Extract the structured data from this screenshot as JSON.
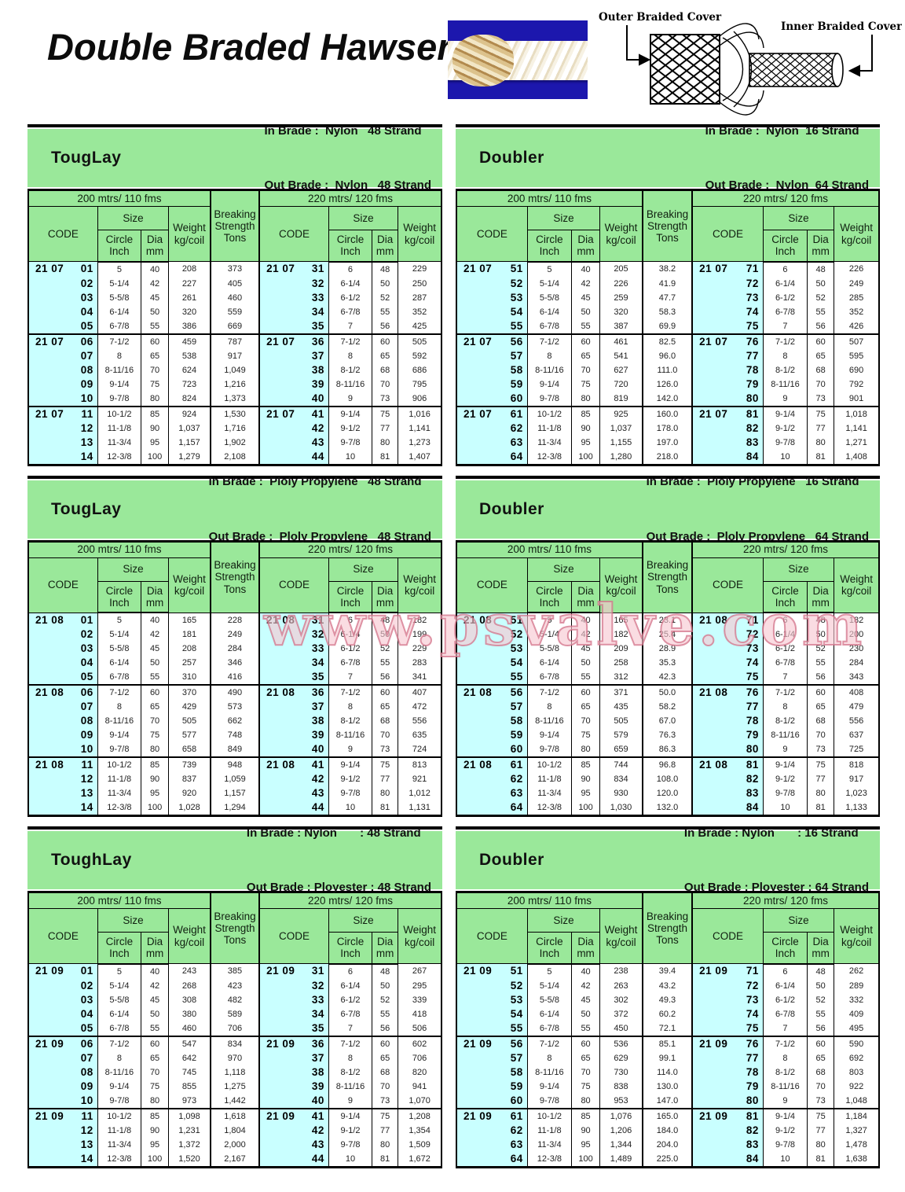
{
  "page": {
    "title": "Double Braded Hawser",
    "watermark": "www.psvalve.com"
  },
  "diagram": {
    "outer_label": "Outer Braided Cover",
    "inner_label": "Inner Braided Cover"
  },
  "colors": {
    "header_green": "#9ae89a",
    "code_cyan": "#c9ffff",
    "watermark_pink": "#d37389",
    "photo_blue": "#1c17ad"
  },
  "columns": {
    "span200": "200 mtrs/ 110 fms",
    "span220": "220 mtrs/ 120 fms",
    "code": "CODE",
    "size": "Size",
    "circle": "Circle Inch",
    "dia": "Dia mm",
    "weight": "Weight kg/coil",
    "breaking": "Breaking Strength Tons"
  },
  "tables": [
    {
      "title": "TougLay",
      "in_brade": "In Brade :  Nylon   48 Strand",
      "out_brade": "Out Brade :  Nylon   48 Strand",
      "rows": [
        [
          "21 07",
          "01",
          "5",
          "40",
          "208",
          "373",
          "21 07",
          "31",
          "6",
          "48",
          "229"
        ],
        [
          "",
          "02",
          "5-1/4",
          "42",
          "227",
          "405",
          "",
          "32",
          "6-1/4",
          "50",
          "250"
        ],
        [
          "",
          "03",
          "5-5/8",
          "45",
          "261",
          "460",
          "",
          "33",
          "6-1/2",
          "52",
          "287"
        ],
        [
          "",
          "04",
          "6-1/4",
          "50",
          "320",
          "559",
          "",
          "34",
          "6-7/8",
          "55",
          "352"
        ],
        [
          "",
          "05",
          "6-7/8",
          "55",
          "386",
          "669",
          "",
          "35",
          "7",
          "56",
          "425"
        ],
        [
          "21 07",
          "06",
          "7-1/2",
          "60",
          "459",
          "787",
          "21 07",
          "36",
          "7-1/2",
          "60",
          "505"
        ],
        [
          "",
          "07",
          "8",
          "65",
          "538",
          "917",
          "",
          "37",
          "8",
          "65",
          "592"
        ],
        [
          "",
          "08",
          "8-11/16",
          "70",
          "624",
          "1,049",
          "",
          "38",
          "8-1/2",
          "68",
          "686"
        ],
        [
          "",
          "09",
          "9-1/4",
          "75",
          "723",
          "1,216",
          "",
          "39",
          "8-11/16",
          "70",
          "795"
        ],
        [
          "",
          "10",
          "9-7/8",
          "80",
          "824",
          "1,373",
          "",
          "40",
          "9",
          "73",
          "906"
        ],
        [
          "21 07",
          "11",
          "10-1/2",
          "85",
          "924",
          "1,530",
          "21 07",
          "41",
          "9-1/4",
          "75",
          "1,016"
        ],
        [
          "",
          "12",
          "11-1/8",
          "90",
          "1,037",
          "1,716",
          "",
          "42",
          "9-1/2",
          "77",
          "1,141"
        ],
        [
          "",
          "13",
          "11-3/4",
          "95",
          "1,157",
          "1,902",
          "",
          "43",
          "9-7/8",
          "80",
          "1,273"
        ],
        [
          "",
          "14",
          "12-3/8",
          "100",
          "1,279",
          "2,108",
          "",
          "44",
          "10",
          "81",
          "1,407"
        ]
      ]
    },
    {
      "title": "Doubler",
      "in_brade": "In Brade :  Nylon  16 Strand",
      "out_brade": "Out Brade :  Nylon  64 Strand",
      "rows": [
        [
          "21 07",
          "51",
          "5",
          "40",
          "205",
          "38.2",
          "21 07",
          "71",
          "6",
          "48",
          "226"
        ],
        [
          "",
          "52",
          "5-1/4",
          "42",
          "226",
          "41.9",
          "",
          "72",
          "6-1/4",
          "50",
          "249"
        ],
        [
          "",
          "53",
          "5-5/8",
          "45",
          "259",
          "47.7",
          "",
          "73",
          "6-1/2",
          "52",
          "285"
        ],
        [
          "",
          "54",
          "6-1/4",
          "50",
          "320",
          "58.3",
          "",
          "74",
          "6-7/8",
          "55",
          "352"
        ],
        [
          "",
          "55",
          "6-7/8",
          "55",
          "387",
          "69.9",
          "",
          "75",
          "7",
          "56",
          "426"
        ],
        [
          "21 07",
          "56",
          "7-1/2",
          "60",
          "461",
          "82.5",
          "21 07",
          "76",
          "7-1/2",
          "60",
          "507"
        ],
        [
          "",
          "57",
          "8",
          "65",
          "541",
          "96.0",
          "",
          "77",
          "8",
          "65",
          "595"
        ],
        [
          "",
          "58",
          "8-11/16",
          "70",
          "627",
          "111.0",
          "",
          "78",
          "8-1/2",
          "68",
          "690"
        ],
        [
          "",
          "59",
          "9-1/4",
          "75",
          "720",
          "126.0",
          "",
          "79",
          "8-11/16",
          "70",
          "792"
        ],
        [
          "",
          "60",
          "9-7/8",
          "80",
          "819",
          "142.0",
          "",
          "80",
          "9",
          "73",
          "901"
        ],
        [
          "21 07",
          "61",
          "10-1/2",
          "85",
          "925",
          "160.0",
          "21 07",
          "81",
          "9-1/4",
          "75",
          "1,018"
        ],
        [
          "",
          "62",
          "11-1/8",
          "90",
          "1,037",
          "178.0",
          "",
          "82",
          "9-1/2",
          "77",
          "1,141"
        ],
        [
          "",
          "63",
          "11-3/4",
          "95",
          "1,155",
          "197.0",
          "",
          "83",
          "9-7/8",
          "80",
          "1,271"
        ],
        [
          "",
          "64",
          "12-3/8",
          "100",
          "1,280",
          "218.0",
          "",
          "84",
          "10",
          "81",
          "1,408"
        ]
      ]
    },
    {
      "title": "TougLay",
      "in_brade": "In Brade :  Ploly Propylene   48 Strand",
      "out_brade": "Out Brade :  Ploly Propylene   48 Strand",
      "rows": [
        [
          "21 08",
          "01",
          "5",
          "40",
          "165",
          "228",
          "21 08",
          "31",
          "6",
          "48",
          "182"
        ],
        [
          "",
          "02",
          "5-1/4",
          "42",
          "181",
          "249",
          "",
          "32",
          "6-1/4",
          "50",
          "199"
        ],
        [
          "",
          "03",
          "5-5/8",
          "45",
          "208",
          "284",
          "",
          "33",
          "6-1/2",
          "52",
          "229"
        ],
        [
          "",
          "04",
          "6-1/4",
          "50",
          "257",
          "346",
          "",
          "34",
          "6-7/8",
          "55",
          "283"
        ],
        [
          "",
          "05",
          "6-7/8",
          "55",
          "310",
          "416",
          "",
          "35",
          "7",
          "56",
          "341"
        ],
        [
          "21 08",
          "06",
          "7-1/2",
          "60",
          "370",
          "490",
          "21 08",
          "36",
          "7-1/2",
          "60",
          "407"
        ],
        [
          "",
          "07",
          "8",
          "65",
          "429",
          "573",
          "",
          "37",
          "8",
          "65",
          "472"
        ],
        [
          "",
          "08",
          "8-11/16",
          "70",
          "505",
          "662",
          "",
          "38",
          "8-1/2",
          "68",
          "556"
        ],
        [
          "",
          "09",
          "9-1/4",
          "75",
          "577",
          "748",
          "",
          "39",
          "8-11/16",
          "70",
          "635"
        ],
        [
          "",
          "10",
          "9-7/8",
          "80",
          "658",
          "849",
          "",
          "40",
          "9",
          "73",
          "724"
        ],
        [
          "21 08",
          "11",
          "10-1/2",
          "85",
          "739",
          "948",
          "21 08",
          "41",
          "9-1/4",
          "75",
          "813"
        ],
        [
          "",
          "12",
          "11-1/8",
          "90",
          "837",
          "1,059",
          "",
          "42",
          "9-1/2",
          "77",
          "921"
        ],
        [
          "",
          "13",
          "11-3/4",
          "95",
          "920",
          "1,157",
          "",
          "43",
          "9-7/8",
          "80",
          "1,012"
        ],
        [
          "",
          "14",
          "12-3/8",
          "100",
          "1,028",
          "1,294",
          "",
          "44",
          "10",
          "81",
          "1,131"
        ]
      ]
    },
    {
      "title": "Doubler",
      "in_brade": "In Brade :  Ploly Propylene   16 Strand",
      "out_brade": "Out Brade :  Ploly Propylene   64 Strand",
      "rows": [
        [
          "21 08",
          "51",
          "5",
          "40",
          "165",
          "23.1",
          "21 08",
          "71",
          "6",
          "48",
          "182"
        ],
        [
          "",
          "52",
          "5-1/4",
          "42",
          "182",
          "25.4",
          "",
          "72",
          "6-1/4",
          "50",
          "200"
        ],
        [
          "",
          "53",
          "5-5/8",
          "45",
          "209",
          "28.9",
          "",
          "73",
          "6-1/2",
          "52",
          "230"
        ],
        [
          "",
          "54",
          "6-1/4",
          "50",
          "258",
          "35.3",
          "",
          "74",
          "6-7/8",
          "55",
          "284"
        ],
        [
          "",
          "55",
          "6-7/8",
          "55",
          "312",
          "42.3",
          "",
          "75",
          "7",
          "56",
          "343"
        ],
        [
          "21 08",
          "56",
          "7-1/2",
          "60",
          "371",
          "50.0",
          "21 08",
          "76",
          "7-1/2",
          "60",
          "408"
        ],
        [
          "",
          "57",
          "8",
          "65",
          "435",
          "58.2",
          "",
          "77",
          "8",
          "65",
          "479"
        ],
        [
          "",
          "58",
          "8-11/16",
          "70",
          "505",
          "67.0",
          "",
          "78",
          "8-1/2",
          "68",
          "556"
        ],
        [
          "",
          "59",
          "9-1/4",
          "75",
          "579",
          "76.3",
          "",
          "79",
          "8-11/16",
          "70",
          "637"
        ],
        [
          "",
          "60",
          "9-7/8",
          "80",
          "659",
          "86.3",
          "",
          "80",
          "9",
          "73",
          "725"
        ],
        [
          "21 08",
          "61",
          "10-1/2",
          "85",
          "744",
          "96.8",
          "21 08",
          "81",
          "9-1/4",
          "75",
          "818"
        ],
        [
          "",
          "62",
          "11-1/8",
          "90",
          "834",
          "108.0",
          "",
          "82",
          "9-1/2",
          "77",
          "917"
        ],
        [
          "",
          "63",
          "11-3/4",
          "95",
          "930",
          "120.0",
          "",
          "83",
          "9-7/8",
          "80",
          "1,023"
        ],
        [
          "",
          "64",
          "12-3/8",
          "100",
          "1,030",
          "132.0",
          "",
          "84",
          "10",
          "81",
          "1,133"
        ]
      ]
    },
    {
      "title": "ToughLay",
      "in_brade": "In Brade : Nylon       : 48 Strand",
      "out_brade": "Out Brade : Ployester : 48 Strand",
      "rows": [
        [
          "21 09",
          "01",
          "5",
          "40",
          "243",
          "385",
          "21 09",
          "31",
          "6",
          "48",
          "267"
        ],
        [
          "",
          "02",
          "5-1/4",
          "42",
          "268",
          "423",
          "",
          "32",
          "6-1/4",
          "50",
          "295"
        ],
        [
          "",
          "03",
          "5-5/8",
          "45",
          "308",
          "482",
          "",
          "33",
          "6-1/2",
          "52",
          "339"
        ],
        [
          "",
          "04",
          "6-1/4",
          "50",
          "380",
          "589",
          "",
          "34",
          "6-7/8",
          "55",
          "418"
        ],
        [
          "",
          "05",
          "6-7/8",
          "55",
          "460",
          "706",
          "",
          "35",
          "7",
          "56",
          "506"
        ],
        [
          "21 09",
          "06",
          "7-1/2",
          "60",
          "547",
          "834",
          "21 09",
          "36",
          "7-1/2",
          "60",
          "602"
        ],
        [
          "",
          "07",
          "8",
          "65",
          "642",
          "970",
          "",
          "37",
          "8",
          "65",
          "706"
        ],
        [
          "",
          "08",
          "8-11/16",
          "70",
          "745",
          "1,118",
          "",
          "38",
          "8-1/2",
          "68",
          "820"
        ],
        [
          "",
          "09",
          "9-1/4",
          "75",
          "855",
          "1,275",
          "",
          "39",
          "8-11/16",
          "70",
          "941"
        ],
        [
          "",
          "10",
          "9-7/8",
          "80",
          "973",
          "1,442",
          "",
          "40",
          "9",
          "73",
          "1,070"
        ],
        [
          "21 09",
          "11",
          "10-1/2",
          "85",
          "1,098",
          "1,618",
          "21 09",
          "41",
          "9-1/4",
          "75",
          "1,208"
        ],
        [
          "",
          "12",
          "11-1/8",
          "90",
          "1,231",
          "1,804",
          "",
          "42",
          "9-1/2",
          "77",
          "1,354"
        ],
        [
          "",
          "13",
          "11-3/4",
          "95",
          "1,372",
          "2,000",
          "",
          "43",
          "9-7/8",
          "80",
          "1,509"
        ],
        [
          "",
          "14",
          "12-3/8",
          "100",
          "1,520",
          "2,167",
          "",
          "44",
          "10",
          "81",
          "1,672"
        ]
      ]
    },
    {
      "title": "Doubler",
      "in_brade": "In Brade : Nylon       : 16 Strand",
      "out_brade": "Out Brade : Ployester : 64 Strand",
      "rows": [
        [
          "21 09",
          "51",
          "5",
          "40",
          "238",
          "39.4",
          "21 09",
          "71",
          "6",
          "48",
          "262"
        ],
        [
          "",
          "52",
          "5-1/4",
          "42",
          "263",
          "43.2",
          "",
          "72",
          "6-1/4",
          "50",
          "289"
        ],
        [
          "",
          "53",
          "5-5/8",
          "45",
          "302",
          "49.3",
          "",
          "73",
          "6-1/2",
          "52",
          "332"
        ],
        [
          "",
          "54",
          "6-1/4",
          "50",
          "372",
          "60.2",
          "",
          "74",
          "6-7/8",
          "55",
          "409"
        ],
        [
          "",
          "55",
          "6-7/8",
          "55",
          "450",
          "72.1",
          "",
          "75",
          "7",
          "56",
          "495"
        ],
        [
          "21 09",
          "56",
          "7-1/2",
          "60",
          "536",
          "85.1",
          "21 09",
          "76",
          "7-1/2",
          "60",
          "590"
        ],
        [
          "",
          "57",
          "8",
          "65",
          "629",
          "99.1",
          "",
          "77",
          "8",
          "65",
          "692"
        ],
        [
          "",
          "58",
          "8-11/16",
          "70",
          "730",
          "114.0",
          "",
          "78",
          "8-1/2",
          "68",
          "803"
        ],
        [
          "",
          "59",
          "9-1/4",
          "75",
          "838",
          "130.0",
          "",
          "79",
          "8-11/16",
          "70",
          "922"
        ],
        [
          "",
          "60",
          "9-7/8",
          "80",
          "953",
          "147.0",
          "",
          "80",
          "9",
          "73",
          "1,048"
        ],
        [
          "21 09",
          "61",
          "10-1/2",
          "85",
          "1,076",
          "165.0",
          "21 09",
          "81",
          "9-1/4",
          "75",
          "1,184"
        ],
        [
          "",
          "62",
          "11-1/8",
          "90",
          "1,206",
          "184.0",
          "",
          "82",
          "9-1/2",
          "77",
          "1,327"
        ],
        [
          "",
          "63",
          "11-3/4",
          "95",
          "1,344",
          "204.0",
          "",
          "83",
          "9-7/8",
          "80",
          "1,478"
        ],
        [
          "",
          "64",
          "12-3/8",
          "100",
          "1,489",
          "225.0",
          "",
          "84",
          "10",
          "81",
          "1,638"
        ]
      ]
    }
  ]
}
